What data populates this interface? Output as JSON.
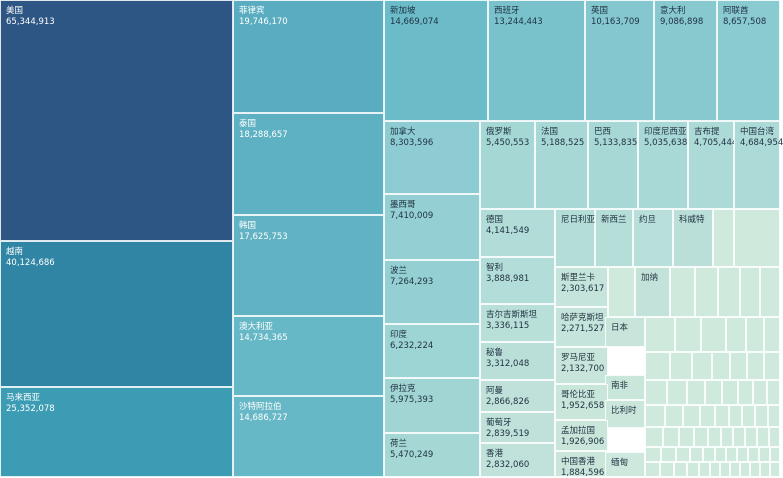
{
  "chart_data": {
    "type": "treemap",
    "items": [
      {
        "name": "美国",
        "value": "65,344,913",
        "color": "#2e5684"
      },
      {
        "name": "越南",
        "value": "40,124,686",
        "color": "#3185a4"
      },
      {
        "name": "马来西亚",
        "value": "25,352,078",
        "color": "#3c9cb4"
      },
      {
        "name": "菲律宾",
        "value": "19,746,170",
        "color": "#5aadc0"
      },
      {
        "name": "泰国",
        "value": "18,288,657",
        "color": "#5eb1c2"
      },
      {
        "name": "韩国",
        "value": "17,625,753",
        "color": "#61b3c3"
      },
      {
        "name": "澳大利亚",
        "value": "14,734,365",
        "color": "#67b8c6"
      },
      {
        "name": "沙特阿拉伯",
        "value": "14,686,727",
        "color": "#67b8c6"
      },
      {
        "name": "新加坡",
        "value": "14,669,074",
        "color": "#6bbbc8"
      },
      {
        "name": "西班牙",
        "value": "13,244,443",
        "color": "#79c2cc"
      },
      {
        "name": "英国",
        "value": "10,163,709",
        "color": "#84c7cf"
      },
      {
        "name": "意大利",
        "value": "9,086,898",
        "color": "#88c9d0"
      },
      {
        "name": "阿联酋",
        "value": "8,657,508",
        "color": "#8acad1"
      },
      {
        "name": "加拿大",
        "value": "8,303,596",
        "color": "#8dccd2"
      },
      {
        "name": "俄罗斯",
        "value": "5,450,553",
        "color": "#a5d7d5"
      },
      {
        "name": "法国",
        "value": "5,188,525",
        "color": "#a8d8d6"
      },
      {
        "name": "巴西",
        "value": "5,133,835",
        "color": "#a8d8d6"
      },
      {
        "name": "印度尼西亚",
        "value": "5,035,638",
        "color": "#a9d9d6"
      },
      {
        "name": "吉布提",
        "value": "4,705,444",
        "color": "#acdad7"
      },
      {
        "name": "中国台湾",
        "value": "4,684,954",
        "color": "#acdad7"
      },
      {
        "name": "墨西哥",
        "value": "7,410,009",
        "color": "#93cfd3"
      },
      {
        "name": "德国",
        "value": "4,141,549",
        "color": "#b1dcd8"
      },
      {
        "name": "尼日利亚",
        "value": "",
        "color": "#b4ddd8"
      },
      {
        "name": "新西兰",
        "value": "",
        "color": "#b6ded8"
      },
      {
        "name": "约旦",
        "value": "",
        "color": "#b8dfd9"
      },
      {
        "name": "科威特",
        "value": "",
        "color": "#badfd9"
      },
      {
        "name": "波兰",
        "value": "7,264,293",
        "color": "#94d0d3"
      },
      {
        "name": "智利",
        "value": "3,888,981",
        "color": "#b3ddd8"
      },
      {
        "name": "斯里兰卡",
        "value": "2,303,617",
        "color": "#c5e4db"
      },
      {
        "name": "加纳",
        "value": "",
        "color": "#c3e3da"
      },
      {
        "name": "吉尔吉斯斯坦",
        "value": "3,336,115",
        "color": "#b9dfd9"
      },
      {
        "name": "哈萨克斯坦",
        "value": "2,271,527",
        "color": "#c5e4db"
      },
      {
        "name": "日本",
        "value": "",
        "color": "#c7e5db"
      },
      {
        "name": "印度",
        "value": "6,232,224",
        "color": "#9dd4d4"
      },
      {
        "name": "秘鲁",
        "value": "3,312,048",
        "color": "#badfd9"
      },
      {
        "name": "罗马尼亚",
        "value": "2,132,700",
        "color": "#c7e5db"
      },
      {
        "name": "南非",
        "value": "",
        "color": "#c9e6db"
      },
      {
        "name": "伊拉克",
        "value": "5,975,393",
        "color": "#a0d5d4"
      },
      {
        "name": "阿曼",
        "value": "2,866,826",
        "color": "#bfe1da"
      },
      {
        "name": "哥伦比亚",
        "value": "1,952,658",
        "color": "#c9e6db"
      },
      {
        "name": "比利时",
        "value": "",
        "color": "#cbe7dc"
      },
      {
        "name": "荷兰",
        "value": "5,470,249",
        "color": "#a5d7d5"
      },
      {
        "name": "葡萄牙",
        "value": "2,839,519",
        "color": "#bfe1da"
      },
      {
        "name": "孟加拉国",
        "value": "1,926,906",
        "color": "#cae6db"
      },
      {
        "name": "香港",
        "value": "2,832,060",
        "color": "#c0e2da"
      },
      {
        "name": "中国香港",
        "value": "1,884,596",
        "color": "#cae6db"
      },
      {
        "name": "缅甸",
        "value": "",
        "color": "#cde8dc"
      }
    ]
  },
  "colors": {
    "tiny_fill": "#cfe9dd",
    "dark_text": "#ffffff",
    "light_text": "#1f3140"
  }
}
